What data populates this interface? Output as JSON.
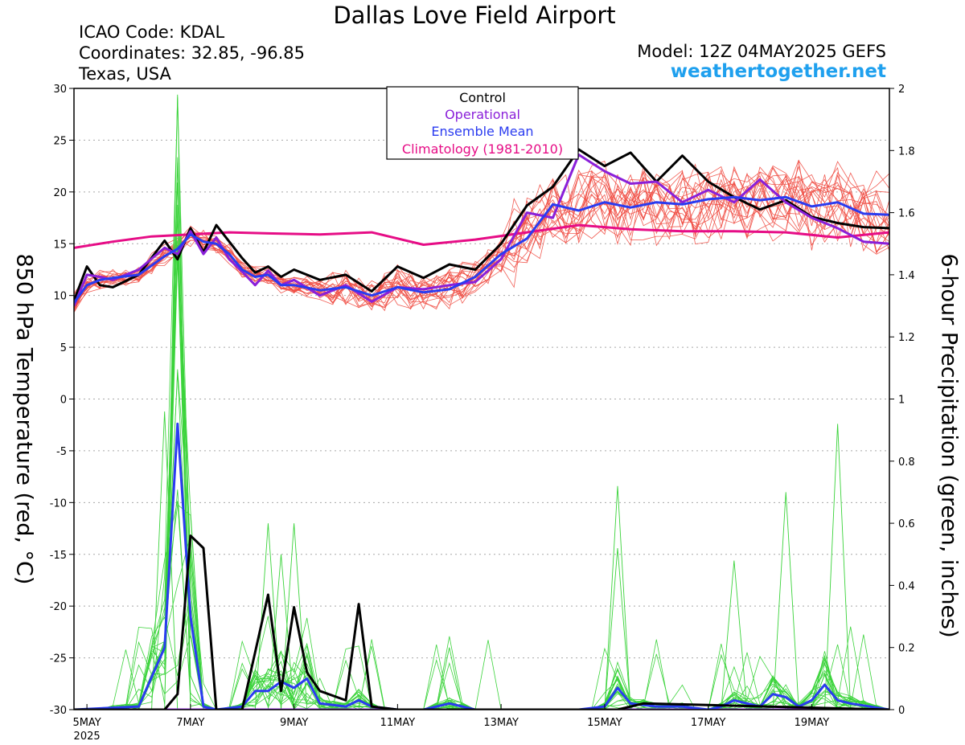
{
  "header": {
    "title": "Dallas Love Field Airport",
    "icao": "ICAO Code: KDAL",
    "coords": "Coordinates: 32.85, -96.85",
    "region": "Texas, USA",
    "model": "Model: 12Z 04MAY2025 GEFS",
    "site": "weathertogether.net"
  },
  "legend": {
    "items": [
      {
        "label": "Control",
        "color": "#000000"
      },
      {
        "label": "Operational",
        "color": "#8a1fd9"
      },
      {
        "label": "Ensemble Mean",
        "color": "#2a3bf0"
      },
      {
        "label": "Climatology (1981-2010)",
        "color": "#e60d86"
      }
    ]
  },
  "chart_data": {
    "type": "line",
    "title": "Dallas Love Field Airport",
    "xlabel": "",
    "ylabel": "850 hPa Temperature (red, °C)",
    "ylabel_right": "6-hour Precipitation (green, inches)",
    "xlim": [
      "2025-05-04T18:00",
      "2025-05-20T12:00"
    ],
    "x_ticks": [
      {
        "x": "2025-05-05",
        "label": "5MAY",
        "sublabel": "2025"
      },
      {
        "x": "2025-05-07",
        "label": "7MAY"
      },
      {
        "x": "2025-05-09",
        "label": "9MAY"
      },
      {
        "x": "2025-05-11",
        "label": "11MAY"
      },
      {
        "x": "2025-05-13",
        "label": "13MAY"
      },
      {
        "x": "2025-05-15",
        "label": "15MAY"
      },
      {
        "x": "2025-05-17",
        "label": "17MAY"
      },
      {
        "x": "2025-05-19",
        "label": "19MAY"
      }
    ],
    "ylim": [
      -30,
      30
    ],
    "yticks": [
      -30,
      -25,
      -20,
      -15,
      -10,
      -5,
      0,
      5,
      10,
      15,
      20,
      25,
      30
    ],
    "ylim_right": [
      0,
      2
    ],
    "yticks_right": [
      "0",
      "0.2",
      "0.4",
      "0.6",
      "0.8",
      "1",
      "1.2",
      "1.4",
      "1.6",
      "1.8",
      "2"
    ],
    "grid": "horizontal dotted",
    "legend_position": "top-center",
    "temperature_series": [
      {
        "name": "Climatology (1981-2010)",
        "color": "#e60d86",
        "x": [
          "2025-05-04T18:00",
          "2025-05-05T12:00",
          "2025-05-06T06:00",
          "2025-05-07T00:00",
          "2025-05-07T18:00",
          "2025-05-08T12:00",
          "2025-05-09T12:00",
          "2025-05-10T12:00",
          "2025-05-11T12:00",
          "2025-05-12T12:00",
          "2025-05-13T12:00",
          "2025-05-14T12:00",
          "2025-05-15T12:00",
          "2025-05-16T12:00",
          "2025-05-17T12:00",
          "2025-05-18T12:00",
          "2025-05-19T12:00",
          "2025-05-20T12:00"
        ],
        "y": [
          14.6,
          15.2,
          15.7,
          15.9,
          16.1,
          16.0,
          15.9,
          16.1,
          14.9,
          15.4,
          16.1,
          16.8,
          16.4,
          16.2,
          16.2,
          16.1,
          15.6,
          16.1
        ]
      },
      {
        "name": "Control",
        "color": "#000000",
        "x": [
          "2025-05-04T18:00",
          "2025-05-05T00:00",
          "2025-05-05T06:00",
          "2025-05-05T12:00",
          "2025-05-06T00:00",
          "2025-05-06T12:00",
          "2025-05-06T18:00",
          "2025-05-07T00:00",
          "2025-05-07T06:00",
          "2025-05-07T12:00",
          "2025-05-07T18:00",
          "2025-05-08T00:00",
          "2025-05-08T06:00",
          "2025-05-08T12:00",
          "2025-05-08T18:00",
          "2025-05-09T00:00",
          "2025-05-09T12:00",
          "2025-05-10T00:00",
          "2025-05-10T12:00",
          "2025-05-11T00:00",
          "2025-05-11T12:00",
          "2025-05-12T00:00",
          "2025-05-12T12:00",
          "2025-05-13T00:00",
          "2025-05-13T12:00",
          "2025-05-14T00:00",
          "2025-05-14T12:00",
          "2025-05-15T00:00",
          "2025-05-15T12:00",
          "2025-05-16T00:00",
          "2025-05-16T12:00",
          "2025-05-17T00:00",
          "2025-05-17T12:00",
          "2025-05-18T00:00",
          "2025-05-18T12:00",
          "2025-05-19T00:00",
          "2025-05-19T12:00",
          "2025-05-20T00:00",
          "2025-05-20T12:00"
        ],
        "y": [
          9.5,
          12.8,
          11.0,
          10.8,
          12.0,
          15.3,
          13.5,
          16.5,
          14.2,
          16.8,
          15.2,
          13.6,
          12.2,
          12.8,
          11.8,
          12.5,
          11.5,
          12.0,
          10.4,
          12.8,
          11.7,
          13.0,
          12.5,
          15.0,
          18.7,
          20.5,
          24.1,
          22.5,
          23.8,
          21.0,
          23.5,
          21.0,
          19.5,
          18.3,
          19.2,
          17.6,
          17.0,
          16.6,
          16.5
        ]
      },
      {
        "name": "Operational",
        "color": "#8a1fd9",
        "x": [
          "2025-05-04T18:00",
          "2025-05-05T00:00",
          "2025-05-05T06:00",
          "2025-05-05T12:00",
          "2025-05-06T00:00",
          "2025-05-06T12:00",
          "2025-05-06T18:00",
          "2025-05-07T00:00",
          "2025-05-07T06:00",
          "2025-05-07T12:00",
          "2025-05-07T18:00",
          "2025-05-08T00:00",
          "2025-05-08T06:00",
          "2025-05-08T12:00",
          "2025-05-08T18:00",
          "2025-05-09T00:00",
          "2025-05-09T12:00",
          "2025-05-10T00:00",
          "2025-05-10T12:00",
          "2025-05-11T00:00",
          "2025-05-11T12:00",
          "2025-05-12T00:00",
          "2025-05-12T12:00",
          "2025-05-13T00:00",
          "2025-05-13T12:00",
          "2025-05-14T00:00",
          "2025-05-14T12:00",
          "2025-05-15T00:00",
          "2025-05-15T12:00",
          "2025-05-16T00:00",
          "2025-05-16T12:00",
          "2025-05-17T00:00",
          "2025-05-17T12:00",
          "2025-05-18T00:00",
          "2025-05-18T12:00",
          "2025-05-19T00:00",
          "2025-05-19T12:00",
          "2025-05-20T00:00",
          "2025-05-20T12:00"
        ],
        "y": [
          9.0,
          12.0,
          11.8,
          11.5,
          12.5,
          14.6,
          14.0,
          16.2,
          14.0,
          15.6,
          13.5,
          12.3,
          11.0,
          12.4,
          11.0,
          11.5,
          10.0,
          11.0,
          9.4,
          10.8,
          10.6,
          11.0,
          11.3,
          13.5,
          18.0,
          17.5,
          23.6,
          22.0,
          20.8,
          21.0,
          19.0,
          20.2,
          19.0,
          21.2,
          19.0,
          17.5,
          16.5,
          15.2,
          15.0
        ]
      },
      {
        "name": "Ensemble Mean",
        "color": "#2a3bf0",
        "x": [
          "2025-05-04T18:00",
          "2025-05-05T00:00",
          "2025-05-05T06:00",
          "2025-05-05T12:00",
          "2025-05-06T00:00",
          "2025-05-06T12:00",
          "2025-05-06T18:00",
          "2025-05-07T00:00",
          "2025-05-07T06:00",
          "2025-05-07T12:00",
          "2025-05-07T18:00",
          "2025-05-08T00:00",
          "2025-05-08T06:00",
          "2025-05-08T12:00",
          "2025-05-08T18:00",
          "2025-05-09T00:00",
          "2025-05-09T12:00",
          "2025-05-10T00:00",
          "2025-05-10T12:00",
          "2025-05-11T00:00",
          "2025-05-11T12:00",
          "2025-05-12T00:00",
          "2025-05-12T12:00",
          "2025-05-13T00:00",
          "2025-05-13T12:00",
          "2025-05-14T00:00",
          "2025-05-14T12:00",
          "2025-05-15T00:00",
          "2025-05-15T12:00",
          "2025-05-16T00:00",
          "2025-05-16T12:00",
          "2025-05-17T00:00",
          "2025-05-17T12:00",
          "2025-05-18T00:00",
          "2025-05-18T12:00",
          "2025-05-19T00:00",
          "2025-05-19T12:00",
          "2025-05-20T00:00",
          "2025-05-20T12:00"
        ],
        "y": [
          9.3,
          11.0,
          11.5,
          11.7,
          12.0,
          13.8,
          14.5,
          15.9,
          15.2,
          15.0,
          14.0,
          12.5,
          11.8,
          12.0,
          11.0,
          11.0,
          10.5,
          10.8,
          10.0,
          10.8,
          10.3,
          10.6,
          11.8,
          14.0,
          15.5,
          18.8,
          18.2,
          19.0,
          18.5,
          19.0,
          18.8,
          19.3,
          19.5,
          19.2,
          19.5,
          18.6,
          19.0,
          17.9,
          17.8
        ]
      }
    ],
    "temperature_ensemble": {
      "color": "#f04a40",
      "members": 20,
      "envelope_min": [
        9.0,
        10.0,
        11.5,
        12.0,
        14.2,
        11.5,
        10.0,
        9.5,
        9.0,
        8.5,
        9.5,
        10.0,
        15.5,
        14.0,
        13.5,
        13.0,
        12.5,
        11.5
      ],
      "envelope_max": [
        10.0,
        13.0,
        13.5,
        17.5,
        17.0,
        15.0,
        14.0,
        13.0,
        12.5,
        13.0,
        18.5,
        24.0,
        24.5,
        25.0,
        26.0,
        25.5,
        23.5,
        21.0
      ]
    },
    "precipitation_series": [
      {
        "name": "Control",
        "color": "#000000",
        "x": [
          "2025-05-04T18:00",
          "2025-05-06T00:00",
          "2025-05-06T12:00",
          "2025-05-06T18:00",
          "2025-05-07T00:00",
          "2025-05-07T06:00",
          "2025-05-07T12:00",
          "2025-05-08T00:00",
          "2025-05-08T12:00",
          "2025-05-08T18:00",
          "2025-05-09T00:00",
          "2025-05-09T06:00",
          "2025-05-09T12:00",
          "2025-05-10T00:00",
          "2025-05-10T06:00",
          "2025-05-10T12:00",
          "2025-05-11T00:00",
          "2025-05-15T06:00",
          "2025-05-15T18:00",
          "2025-05-20T12:00"
        ],
        "y": [
          0,
          0,
          0,
          0.05,
          0.56,
          0.52,
          0,
          0,
          0.37,
          0.06,
          0.33,
          0.12,
          0.06,
          0.03,
          0.34,
          0.01,
          0,
          0,
          0.02,
          0
        ]
      },
      {
        "name": "Operational",
        "color": "#8a1fd9",
        "x": [
          "2025-05-04T18:00",
          "2025-05-20T12:00"
        ],
        "y": [
          0,
          0
        ]
      },
      {
        "name": "Ensemble Mean",
        "color": "#2a3bf0",
        "x": [
          "2025-05-04T18:00",
          "2025-05-06T00:00",
          "2025-05-06T12:00",
          "2025-05-06T18:00",
          "2025-05-07T00:00",
          "2025-05-07T06:00",
          "2025-05-07T12:00",
          "2025-05-08T00:00",
          "2025-05-08T06:00",
          "2025-05-08T12:00",
          "2025-05-08T18:00",
          "2025-05-09T00:00",
          "2025-05-09T06:00",
          "2025-05-09T12:00",
          "2025-05-10T00:00",
          "2025-05-10T06:00",
          "2025-05-10T12:00",
          "2025-05-11T00:00",
          "2025-05-11T12:00",
          "2025-05-12T00:00",
          "2025-05-12T12:00",
          "2025-05-14T12:00",
          "2025-05-15T00:00",
          "2025-05-15T06:00",
          "2025-05-15T12:00",
          "2025-05-16T00:00",
          "2025-05-16T12:00",
          "2025-05-17T00:00",
          "2025-05-17T06:00",
          "2025-05-17T12:00",
          "2025-05-17T18:00",
          "2025-05-18T00:00",
          "2025-05-18T06:00",
          "2025-05-18T12:00",
          "2025-05-18T18:00",
          "2025-05-19T00:00",
          "2025-05-19T06:00",
          "2025-05-19T12:00",
          "2025-05-19T18:00",
          "2025-05-20T12:00"
        ],
        "y": [
          0,
          0.01,
          0.2,
          0.92,
          0.3,
          0.01,
          0,
          0.01,
          0.06,
          0.06,
          0.09,
          0.07,
          0.1,
          0.02,
          0.01,
          0.03,
          0.01,
          0,
          0,
          0.02,
          0,
          0,
          0.01,
          0.07,
          0.02,
          0.01,
          0.01,
          0,
          0.01,
          0.03,
          0.02,
          0.01,
          0.05,
          0.04,
          0.01,
          0.03,
          0.08,
          0.03,
          0.02,
          0
        ]
      }
    ],
    "precipitation_ensemble": {
      "color": "#3ad33a",
      "members": 20,
      "peak_values": [
        1.98,
        0.96,
        0.6,
        0.6,
        0.5,
        0.2,
        0.72,
        0.52,
        0.7,
        0.92,
        0.48
      ]
    }
  }
}
